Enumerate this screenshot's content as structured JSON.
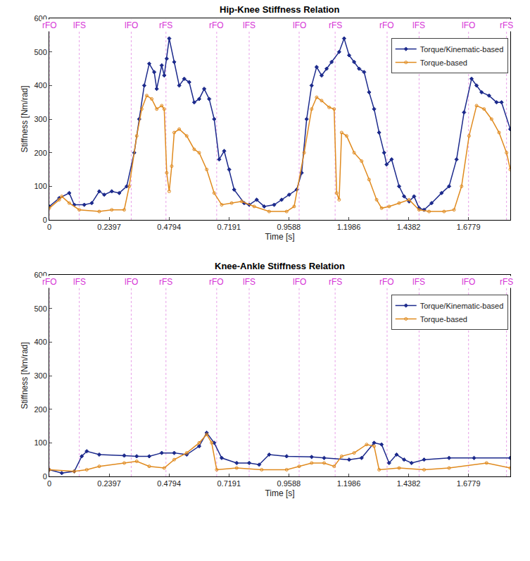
{
  "chart_data": [
    {
      "type": "line",
      "title": "Hip-Knee Stiffness Relation",
      "xlabel": "Time [s]",
      "ylabel": "Stiffness [Nm/rad]",
      "xlim": [
        0,
        1.845
      ],
      "xticks": [
        0,
        0.2397,
        0.4794,
        0.7191,
        0.9588,
        1.1986,
        1.4382,
        1.6779
      ],
      "ylim": [
        0,
        600
      ],
      "yticks": [
        0,
        100,
        200,
        300,
        400,
        500,
        600
      ],
      "grid": false,
      "legend": "upper right",
      "annotations": [
        {
          "text": "rFO",
          "x": 0
        },
        {
          "text": "lFS",
          "x": 0.12
        },
        {
          "text": "lFO",
          "x": 0.328
        },
        {
          "text": "rFS",
          "x": 0.467
        },
        {
          "text": "rFO",
          "x": 0.67
        },
        {
          "text": "lFS",
          "x": 0.8
        },
        {
          "text": "lFO",
          "x": 1.0
        },
        {
          "text": "rFS",
          "x": 1.144
        },
        {
          "text": "rFO",
          "x": 1.352
        },
        {
          "text": "lFS",
          "x": 1.48
        },
        {
          "text": "lFO",
          "x": 1.678
        },
        {
          "text": "rFS",
          "x": 1.83
        }
      ],
      "series": [
        {
          "name": "Torque/Kinematic-based",
          "color": "#1c2a8c",
          "marker": "diamond",
          "line_style": "solid",
          "x": [
            0,
            0.04,
            0.08,
            0.1,
            0.14,
            0.17,
            0.2,
            0.22,
            0.25,
            0.28,
            0.31,
            0.34,
            0.36,
            0.38,
            0.4,
            0.42,
            0.43,
            0.45,
            0.46,
            0.47,
            0.48,
            0.5,
            0.52,
            0.54,
            0.56,
            0.58,
            0.6,
            0.62,
            0.64,
            0.66,
            0.68,
            0.7,
            0.72,
            0.74,
            0.78,
            0.8,
            0.83,
            0.86,
            0.9,
            0.93,
            0.96,
            0.99,
            1.01,
            1.03,
            1.05,
            1.07,
            1.09,
            1.11,
            1.13,
            1.16,
            1.18,
            1.2,
            1.22,
            1.24,
            1.26,
            1.28,
            1.3,
            1.32,
            1.34,
            1.35,
            1.37,
            1.4,
            1.42,
            1.44,
            1.46,
            1.48,
            1.5,
            1.53,
            1.57,
            1.6,
            1.63,
            1.66,
            1.69,
            1.71,
            1.73,
            1.76,
            1.79,
            1.81,
            1.845
          ],
          "values": [
            40,
            65,
            80,
            45,
            45,
            50,
            85,
            75,
            85,
            80,
            100,
            200,
            300,
            400,
            465,
            440,
            390,
            460,
            430,
            480,
            540,
            470,
            400,
            420,
            410,
            350,
            360,
            390,
            360,
            300,
            180,
            205,
            150,
            90,
            50,
            45,
            60,
            40,
            45,
            60,
            75,
            90,
            140,
            300,
            400,
            455,
            430,
            450,
            470,
            500,
            540,
            490,
            470,
            450,
            440,
            380,
            330,
            260,
            200,
            165,
            180,
            100,
            70,
            55,
            70,
            35,
            30,
            50,
            80,
            100,
            180,
            320,
            420,
            400,
            380,
            370,
            350,
            350,
            270
          ]
        },
        {
          "name": "Torque-based",
          "color": "#e08a1e",
          "marker": "circle-open",
          "line_style": "solid",
          "x": [
            0,
            0.04,
            0.05,
            0.08,
            0.12,
            0.2,
            0.25,
            0.3,
            0.32,
            0.35,
            0.37,
            0.39,
            0.41,
            0.43,
            0.45,
            0.46,
            0.47,
            0.48,
            0.49,
            0.5,
            0.52,
            0.55,
            0.58,
            0.6,
            0.63,
            0.66,
            0.69,
            0.73,
            0.77,
            0.82,
            0.88,
            0.95,
            0.98,
            1.02,
            1.05,
            1.07,
            1.09,
            1.12,
            1.14,
            1.15,
            1.16,
            1.17,
            1.19,
            1.22,
            1.25,
            1.28,
            1.31,
            1.33,
            1.36,
            1.4,
            1.44,
            1.48,
            1.52,
            1.58,
            1.62,
            1.65,
            1.68,
            1.71,
            1.74,
            1.77,
            1.8,
            1.83,
            1.845
          ],
          "values": [
            35,
            60,
            70,
            50,
            30,
            25,
            30,
            30,
            100,
            250,
            330,
            370,
            360,
            330,
            340,
            330,
            140,
            85,
            160,
            260,
            270,
            250,
            210,
            200,
            150,
            80,
            45,
            50,
            55,
            40,
            25,
            25,
            40,
            200,
            330,
            365,
            355,
            335,
            330,
            80,
            60,
            260,
            250,
            200,
            175,
            120,
            60,
            35,
            40,
            50,
            60,
            30,
            25,
            25,
            30,
            100,
            250,
            340,
            330,
            300,
            260,
            200,
            150
          ]
        }
      ]
    },
    {
      "type": "line",
      "title": "Knee-Ankle Stiffness Relation",
      "xlabel": "Time [s]",
      "ylabel": "Stiffness [Nm/rad]",
      "xlim": [
        0,
        1.845
      ],
      "xticks": [
        0,
        0.2397,
        0.4794,
        0.7191,
        0.9588,
        1.1986,
        1.4382,
        1.6779
      ],
      "ylim": [
        0,
        600
      ],
      "yticks": [
        0,
        100,
        200,
        300,
        400,
        500,
        600
      ],
      "grid": false,
      "legend": "upper right",
      "annotations": [
        {
          "text": "rFO",
          "x": 0
        },
        {
          "text": "lFS",
          "x": 0.12
        },
        {
          "text": "lFO",
          "x": 0.328
        },
        {
          "text": "rFS",
          "x": 0.467
        },
        {
          "text": "rFO",
          "x": 0.67
        },
        {
          "text": "lFS",
          "x": 0.8
        },
        {
          "text": "lFO",
          "x": 1.0
        },
        {
          "text": "rFS",
          "x": 1.144
        },
        {
          "text": "rFO",
          "x": 1.352
        },
        {
          "text": "lFS",
          "x": 1.48
        },
        {
          "text": "lFO",
          "x": 1.678
        },
        {
          "text": "rFS",
          "x": 1.83
        }
      ],
      "series": [
        {
          "name": "Torque/Kinematic-based",
          "color": "#1c2a8c",
          "marker": "diamond",
          "line_style": "solid",
          "x": [
            0,
            0.05,
            0.1,
            0.13,
            0.15,
            0.2,
            0.3,
            0.35,
            0.4,
            0.45,
            0.5,
            0.55,
            0.6,
            0.63,
            0.66,
            0.69,
            0.75,
            0.8,
            0.84,
            0.88,
            0.95,
            1.05,
            1.1,
            1.2,
            1.25,
            1.3,
            1.33,
            1.36,
            1.39,
            1.42,
            1.45,
            1.5,
            1.6,
            1.7,
            1.845
          ],
          "values": [
            20,
            10,
            15,
            60,
            75,
            65,
            62,
            60,
            60,
            70,
            70,
            65,
            90,
            130,
            100,
            55,
            40,
            40,
            35,
            65,
            60,
            58,
            55,
            50,
            55,
            100,
            95,
            40,
            65,
            50,
            40,
            50,
            55,
            55,
            55
          ]
        },
        {
          "name": "Torque-based",
          "color": "#e08a1e",
          "marker": "circle-open",
          "line_style": "solid",
          "x": [
            0,
            0.1,
            0.15,
            0.2,
            0.3,
            0.35,
            0.4,
            0.46,
            0.5,
            0.55,
            0.6,
            0.63,
            0.65,
            0.67,
            0.75,
            0.85,
            0.95,
            1.0,
            1.05,
            1.1,
            1.14,
            1.17,
            1.22,
            1.27,
            1.3,
            1.32,
            1.4,
            1.5,
            1.6,
            1.75,
            1.845
          ],
          "values": [
            20,
            15,
            20,
            30,
            40,
            45,
            30,
            25,
            50,
            70,
            100,
            125,
            100,
            20,
            25,
            20,
            20,
            30,
            40,
            40,
            30,
            60,
            70,
            95,
            90,
            20,
            25,
            20,
            25,
            40,
            25
          ]
        }
      ]
    }
  ]
}
